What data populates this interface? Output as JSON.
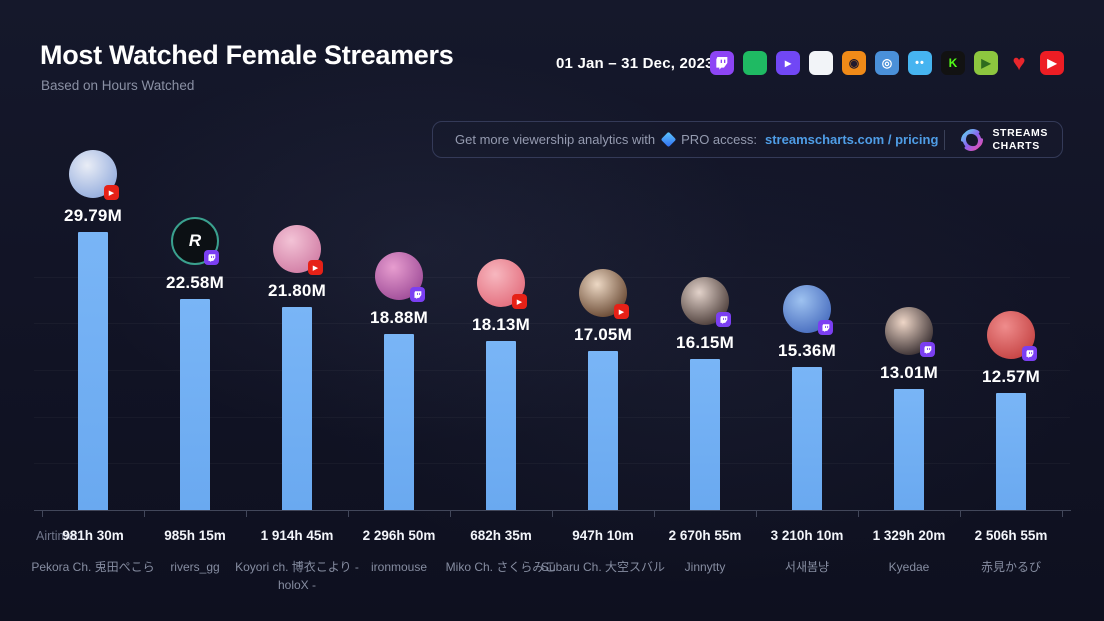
{
  "header": {
    "title": "Most Watched Female Streamers",
    "subtitle": "Based on Hours Watched",
    "date_range": "01 Jan – 31 Dec, 2023"
  },
  "platform_icons": [
    {
      "name": "twitch",
      "bg": "#8d45f5",
      "glyph": "twitch",
      "glyph_color": "#ffffff"
    },
    {
      "name": "trovo",
      "bg": "#1fba63",
      "glyph": "",
      "glyph_color": "#0e5a33"
    },
    {
      "name": "vk-play",
      "bg": "#7147f5",
      "glyph": "▸",
      "glyph_color": "#ffffff"
    },
    {
      "name": "nimo-tv",
      "bg": "#f2f4f8",
      "glyph": "",
      "glyph_color": "#2a3a4a"
    },
    {
      "name": "huya",
      "bg": "#f08a18",
      "glyph": "◉",
      "glyph_color": "#201a2e"
    },
    {
      "name": "douyu",
      "bg": "#4a90d9",
      "glyph": "◎",
      "glyph_color": "#ffffff"
    },
    {
      "name": "mildom",
      "bg": "#46b4f0",
      "glyph": "••",
      "glyph_color": "#ffffff"
    },
    {
      "name": "kick",
      "bg": "#121212",
      "glyph": "K",
      "glyph_color": "#53fc18"
    },
    {
      "name": "nonolive",
      "bg": "#8dc63f",
      "glyph": "▶",
      "glyph_color": "#2e6b1e"
    },
    {
      "name": "heart-live",
      "bg": "none",
      "glyph": "♥",
      "glyph_color": "#e8262c"
    },
    {
      "name": "youtube",
      "bg": "#ed1d24",
      "glyph": "▶",
      "glyph_color": "#ffffff"
    }
  ],
  "promo_banner": {
    "text_prefix": "Get more viewership analytics with",
    "pro_text": "PRO access:",
    "link_text": "streamscharts.com / pricing",
    "brand_line1": "STREAMS",
    "brand_line2": "CHARTS"
  },
  "chart_data": {
    "type": "bar",
    "title": "Most Watched Female Streamers",
    "subtitle": "Based on Hours Watched",
    "period": "01 Jan – 31 Dec, 2023",
    "metric": "Hours Watched (millions)",
    "ylim": [
      0,
      30
    ],
    "bar_color": "#6fb0f3",
    "axis_color": "#42475a",
    "value_label_color": "#ffffff",
    "name_label_color": "#868da1",
    "airtime_label": "Airtime:",
    "categories": [
      "Pekora Ch. 兎田ぺこら",
      "rivers_gg",
      "Koyori ch. 博衣こより - holoX -",
      "ironmouse",
      "Miko Ch. さくらみこ",
      "Subaru Ch. 大空スバル",
      "Jinnytty",
      "서새봄냥",
      "Kyedae",
      "赤見かるび"
    ],
    "values": [
      29.79,
      22.58,
      21.8,
      18.88,
      18.13,
      17.05,
      16.15,
      15.36,
      13.01,
      12.57
    ],
    "streamers": [
      {
        "name": "Pekora Ch. 兎田ぺこら",
        "hours_watched": "29.79M",
        "value": 29.79,
        "airtime": "981h 30m",
        "platform": "youtube",
        "avatar": {
          "type": "gradient",
          "colors": [
            "#e9edf6",
            "#96aede"
          ]
        }
      },
      {
        "name": "rivers_gg",
        "hours_watched": "22.58M",
        "value": 22.58,
        "airtime": "985h 15m",
        "platform": "twitch",
        "avatar": {
          "type": "logo",
          "bg": "#0c1014",
          "ring": "#3aa08e",
          "letter": "R"
        }
      },
      {
        "name": "Koyori ch. 博衣こより - holoX -",
        "hours_watched": "21.80M",
        "value": 21.8,
        "airtime": "1 914h 45m",
        "platform": "youtube",
        "avatar": {
          "type": "gradient",
          "colors": [
            "#f3c3d6",
            "#d27fa6"
          ]
        }
      },
      {
        "name": "ironmouse",
        "hours_watched": "18.88M",
        "value": 18.88,
        "airtime": "2 296h 50m",
        "platform": "twitch",
        "avatar": {
          "type": "gradient",
          "colors": [
            "#e79dcf",
            "#a14f9a"
          ]
        }
      },
      {
        "name": "Miko Ch. さくらみこ",
        "hours_watched": "18.13M",
        "value": 18.13,
        "airtime": "682h 35m",
        "platform": "youtube",
        "avatar": {
          "type": "gradient",
          "colors": [
            "#f7b7bf",
            "#e4707f"
          ]
        }
      },
      {
        "name": "Subaru Ch. 大空スバル",
        "hours_watched": "17.05M",
        "value": 17.05,
        "airtime": "947h 10m",
        "platform": "youtube",
        "avatar": {
          "type": "gradient",
          "colors": [
            "#ecd8c4",
            "#6b4b35"
          ]
        }
      },
      {
        "name": "Jinnytty",
        "hours_watched": "16.15M",
        "value": 16.15,
        "airtime": "2 670h 55m",
        "platform": "twitch",
        "avatar": {
          "type": "gradient",
          "colors": [
            "#e2d2ca",
            "#4f403c"
          ]
        }
      },
      {
        "name": "서새봄냥",
        "hours_watched": "15.36M",
        "value": 15.36,
        "airtime": "3 210h 10m",
        "platform": "twitch",
        "avatar": {
          "type": "gradient",
          "colors": [
            "#9ec2f0",
            "#4a6fc0"
          ]
        }
      },
      {
        "name": "Kyedae",
        "hours_watched": "13.01M",
        "value": 13.01,
        "airtime": "1 329h 20m",
        "platform": "twitch",
        "avatar": {
          "type": "gradient",
          "colors": [
            "#eed6c7",
            "#3c3234"
          ]
        }
      },
      {
        "name": "赤見かるび",
        "hours_watched": "12.57M",
        "value": 12.57,
        "airtime": "2 506h 55m",
        "platform": "twitch",
        "avatar": {
          "type": "gradient",
          "colors": [
            "#ef8c8c",
            "#c64545"
          ]
        }
      }
    ],
    "badge_colors": {
      "twitch": "#7b3ff2",
      "youtube": "#e62117"
    }
  }
}
